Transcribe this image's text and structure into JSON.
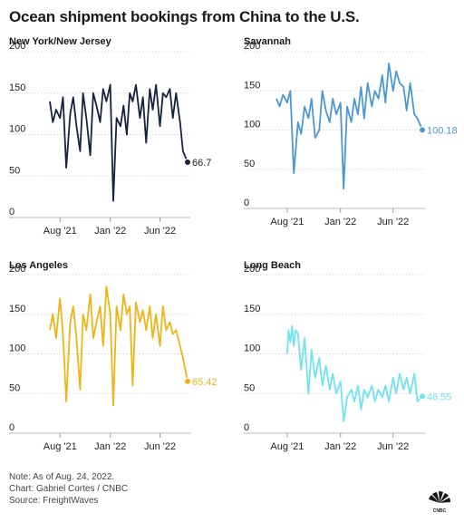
{
  "title": "Ocean shipment bookings from China to the U.S.",
  "notes": {
    "note": "Note: As of Aug. 24, 2022.",
    "chart_credit": "Chart: Gabriel Cortes / CNBC",
    "source": "Source: FreightWaves"
  },
  "chart_data": [
    {
      "type": "line",
      "title": "New York/New Jersey",
      "color": "#16233d",
      "ylim": [
        0,
        200
      ],
      "yticks": [
        0,
        50,
        100,
        150,
        200
      ],
      "xlim": [
        "2021-07-01",
        "2022-08-24"
      ],
      "xticks": [
        {
          "date": "2021-08-01",
          "label": "Aug '21"
        },
        {
          "date": "2022-01-01",
          "label": "Jan '22"
        },
        {
          "date": "2022-06-01",
          "label": "Jun '22"
        }
      ],
      "end_label": "66.7",
      "x": [
        "2021-07-01",
        "2021-07-10",
        "2021-07-20",
        "2021-08-01",
        "2021-08-10",
        "2021-08-20",
        "2021-09-01",
        "2021-09-10",
        "2021-09-20",
        "2021-10-01",
        "2021-10-10",
        "2021-10-20",
        "2021-11-01",
        "2021-11-10",
        "2021-11-20",
        "2021-12-01",
        "2021-12-10",
        "2021-12-20",
        "2022-01-01",
        "2022-01-10",
        "2022-01-20",
        "2022-02-01",
        "2022-02-10",
        "2022-02-20",
        "2022-03-01",
        "2022-03-10",
        "2022-03-20",
        "2022-04-01",
        "2022-04-10",
        "2022-04-20",
        "2022-05-01",
        "2022-05-10",
        "2022-05-20",
        "2022-06-01",
        "2022-06-10",
        "2022-06-20",
        "2022-07-01",
        "2022-07-10",
        "2022-07-20",
        "2022-08-01",
        "2022-08-10",
        "2022-08-24"
      ],
      "values": [
        140,
        115,
        130,
        120,
        145,
        60,
        125,
        145,
        110,
        80,
        150,
        120,
        75,
        150,
        135,
        115,
        155,
        140,
        160,
        20,
        120,
        110,
        135,
        100,
        150,
        140,
        160,
        120,
        145,
        90,
        155,
        130,
        160,
        110,
        150,
        145,
        155,
        120,
        150,
        115,
        80,
        66.7
      ]
    },
    {
      "type": "line",
      "title": "Savannah",
      "color": "#4b98d3",
      "ylim": [
        0,
        200
      ],
      "yticks": [
        0,
        50,
        100,
        150,
        200
      ],
      "xlim": [
        "2021-07-01",
        "2022-08-24"
      ],
      "xticks": [
        {
          "date": "2021-08-01",
          "label": "Aug '21"
        },
        {
          "date": "2022-01-01",
          "label": "Jan '22"
        },
        {
          "date": "2022-06-01",
          "label": "Jun '22"
        }
      ],
      "end_label": "100.18",
      "x": [
        "2021-07-01",
        "2021-07-10",
        "2021-07-20",
        "2021-08-01",
        "2021-08-10",
        "2021-08-20",
        "2021-09-01",
        "2021-09-10",
        "2021-09-20",
        "2021-10-01",
        "2021-10-10",
        "2021-10-20",
        "2021-11-01",
        "2021-11-10",
        "2021-11-20",
        "2021-12-01",
        "2021-12-10",
        "2021-12-20",
        "2022-01-01",
        "2022-01-10",
        "2022-01-20",
        "2022-02-01",
        "2022-02-10",
        "2022-02-20",
        "2022-03-01",
        "2022-03-10",
        "2022-03-20",
        "2022-04-01",
        "2022-04-10",
        "2022-04-20",
        "2022-05-01",
        "2022-05-10",
        "2022-05-20",
        "2022-06-01",
        "2022-06-10",
        "2022-06-20",
        "2022-07-01",
        "2022-07-10",
        "2022-07-20",
        "2022-08-01",
        "2022-08-10",
        "2022-08-24"
      ],
      "values": [
        140,
        130,
        145,
        135,
        150,
        45,
        110,
        95,
        130,
        115,
        140,
        90,
        100,
        150,
        125,
        110,
        140,
        120,
        135,
        25,
        130,
        110,
        140,
        120,
        155,
        115,
        160,
        130,
        150,
        140,
        170,
        135,
        185,
        150,
        175,
        160,
        155,
        125,
        160,
        120,
        115,
        100.18
      ]
    },
    {
      "type": "line",
      "title": "Los Angeles",
      "color": "#f2b317",
      "ylim": [
        0,
        200
      ],
      "yticks": [
        0,
        50,
        100,
        150,
        200
      ],
      "xlim": [
        "2021-07-01",
        "2022-08-24"
      ],
      "xticks": [
        {
          "date": "2021-08-01",
          "label": "Aug '21"
        },
        {
          "date": "2022-01-01",
          "label": "Jan '22"
        },
        {
          "date": "2022-06-01",
          "label": "Jun '22"
        }
      ],
      "end_label": "65.42",
      "x": [
        "2021-07-01",
        "2021-07-10",
        "2021-07-20",
        "2021-08-01",
        "2021-08-10",
        "2021-08-20",
        "2021-09-01",
        "2021-09-10",
        "2021-09-20",
        "2021-10-01",
        "2021-10-10",
        "2021-10-20",
        "2021-11-01",
        "2021-11-10",
        "2021-11-20",
        "2021-12-01",
        "2021-12-10",
        "2021-12-20",
        "2022-01-01",
        "2022-01-10",
        "2022-01-20",
        "2022-02-01",
        "2022-02-10",
        "2022-02-20",
        "2022-03-01",
        "2022-03-10",
        "2022-03-20",
        "2022-04-01",
        "2022-04-10",
        "2022-04-20",
        "2022-05-01",
        "2022-05-10",
        "2022-05-20",
        "2022-06-01",
        "2022-06-10",
        "2022-06-20",
        "2022-07-01",
        "2022-07-10",
        "2022-07-20",
        "2022-08-01",
        "2022-08-10",
        "2022-08-24"
      ],
      "values": [
        130,
        150,
        120,
        170,
        125,
        40,
        140,
        160,
        120,
        55,
        150,
        130,
        175,
        120,
        140,
        160,
        110,
        185,
        150,
        35,
        160,
        130,
        175,
        150,
        160,
        60,
        165,
        140,
        155,
        130,
        160,
        120,
        150,
        110,
        160,
        130,
        140,
        125,
        130,
        110,
        95,
        65.42
      ]
    },
    {
      "type": "line",
      "title": "Long Beach",
      "color": "#6fe3f0",
      "ylim": [
        0,
        200
      ],
      "yticks": [
        0,
        50,
        100,
        150,
        200
      ],
      "xlim": [
        "2021-07-01",
        "2022-08-24"
      ],
      "xticks": [
        {
          "date": "2021-08-01",
          "label": "Aug '21"
        },
        {
          "date": "2022-01-01",
          "label": "Jan '22"
        },
        {
          "date": "2022-06-01",
          "label": "Jun '22"
        }
      ],
      "end_label": "46.55",
      "x": [
        "2021-08-01",
        "2021-08-05",
        "2021-08-10",
        "2021-08-15",
        "2021-08-20",
        "2021-08-25",
        "2021-09-01",
        "2021-09-10",
        "2021-09-20",
        "2021-10-01",
        "2021-10-10",
        "2021-10-20",
        "2021-11-01",
        "2021-11-10",
        "2021-11-20",
        "2021-12-01",
        "2021-12-10",
        "2021-12-20",
        "2022-01-01",
        "2022-01-10",
        "2022-01-20",
        "2022-02-01",
        "2022-02-10",
        "2022-02-20",
        "2022-03-01",
        "2022-03-10",
        "2022-03-20",
        "2022-04-01",
        "2022-04-10",
        "2022-04-20",
        "2022-05-01",
        "2022-05-10",
        "2022-05-20",
        "2022-06-01",
        "2022-06-10",
        "2022-06-20",
        "2022-07-01",
        "2022-07-10",
        "2022-07-20",
        "2022-08-01",
        "2022-08-10",
        "2022-08-24"
      ],
      "values": [
        100,
        130,
        115,
        135,
        110,
        130,
        125,
        80,
        120,
        50,
        105,
        70,
        95,
        60,
        85,
        55,
        75,
        50,
        65,
        15,
        45,
        55,
        40,
        60,
        30,
        55,
        45,
        60,
        40,
        55,
        45,
        60,
        40,
        70,
        50,
        75,
        55,
        70,
        50,
        75,
        40,
        46.55
      ]
    }
  ]
}
